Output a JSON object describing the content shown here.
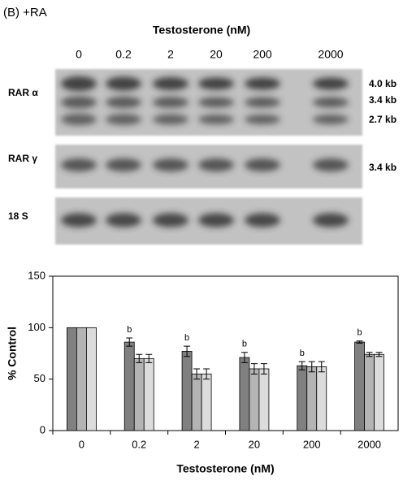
{
  "blot": {
    "title": "(B) +RA",
    "header": "Testosterone (nM)",
    "lanes": [
      "0",
      "0.2",
      "2",
      "20",
      "200",
      "2000"
    ],
    "rows": [
      {
        "label": "RAR α",
        "bands": [
          "4.0 kb",
          "3.4 kb",
          "2.7 kb"
        ]
      },
      {
        "label": "RAR γ",
        "bands": [
          "3.4 kb"
        ]
      },
      {
        "label": "18 S",
        "bands": []
      }
    ]
  },
  "chart_data": {
    "type": "bar",
    "x_label": "Testosterone (nM)",
    "y_label": "% Control",
    "categories": [
      "0",
      "0.2",
      "2",
      "20",
      "200",
      "2000"
    ],
    "series": [
      {
        "color": "#808080",
        "values": [
          100,
          86,
          77,
          71,
          63,
          86
        ],
        "errors": [
          null,
          4,
          5,
          5,
          4,
          1
        ],
        "annotations": [
          null,
          "b",
          "b",
          "b",
          "b",
          "b"
        ]
      },
      {
        "color": "#b4b4b4",
        "values": [
          100,
          70,
          55,
          60,
          62,
          74
        ],
        "errors": [
          null,
          4,
          5,
          5,
          5,
          2
        ]
      },
      {
        "color": "#dcdcdc",
        "values": [
          100,
          70,
          55,
          60,
          62,
          74
        ],
        "errors": [
          null,
          4,
          5,
          5,
          5,
          2
        ]
      }
    ],
    "ylim": [
      0,
      150
    ],
    "yticks": [
      0,
      50,
      100,
      150
    ],
    "grid": false
  }
}
